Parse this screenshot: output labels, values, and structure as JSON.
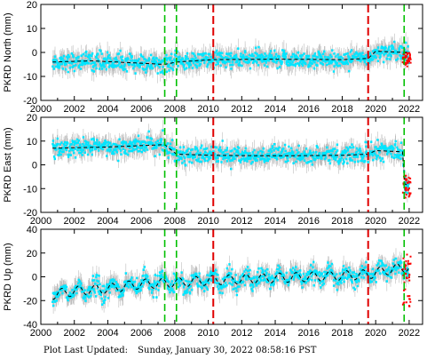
{
  "footer": {
    "label": "Plot Last Updated:",
    "timestamp": "Sunday, January 30, 2022 08:58:16 PST"
  },
  "colors": {
    "data_points": "#00e5ff",
    "error_bars": "#bdbdbd",
    "outliers": "#ff0000",
    "trend_line": "#000000",
    "green_markers": "#00c000",
    "red_markers": "#e00000"
  },
  "chart_data": [
    {
      "type": "scatter",
      "ylabel": "PKRD North (mm)",
      "xlim": [
        2000,
        2022.8
      ],
      "ylim": [
        -20,
        20
      ],
      "x_ticks": [
        2000,
        2002,
        2004,
        2006,
        2008,
        2010,
        2012,
        2014,
        2016,
        2018,
        2020,
        2022
      ],
      "y_ticks": [
        -20,
        -10,
        0,
        10,
        20
      ],
      "data_range": [
        2000.7,
        2022.0
      ],
      "green_vlines": [
        2007.4,
        2008.1,
        2021.7
      ],
      "red_vlines": [
        2010.3,
        2019.55
      ],
      "trend": [
        [
          2000.7,
          -4
        ],
        [
          2003,
          -3.5
        ],
        [
          2006,
          -4.5
        ],
        [
          2007.4,
          -5
        ],
        [
          2008.1,
          -4
        ],
        [
          2010.3,
          -3
        ],
        [
          2014,
          -2.8
        ],
        [
          2018,
          -3
        ],
        [
          2019.55,
          -2.5
        ],
        [
          2020,
          0.5
        ],
        [
          2021.7,
          0
        ]
      ],
      "outlier_x": [
        2021.6,
        2022.1
      ],
      "outlier_y": [
        -6,
        0
      ]
    },
    {
      "type": "scatter",
      "ylabel": "PKRD East (mm)",
      "xlim": [
        2000,
        2022.8
      ],
      "ylim": [
        -20,
        20
      ],
      "x_ticks": [
        2000,
        2002,
        2004,
        2006,
        2008,
        2010,
        2012,
        2014,
        2016,
        2018,
        2020,
        2022
      ],
      "y_ticks": [
        -20,
        -10,
        0,
        10,
        20
      ],
      "data_range": [
        2000.7,
        2022.0
      ],
      "green_vlines": [
        2007.4,
        2008.1,
        2021.7
      ],
      "red_vlines": [
        2010.3,
        2019.55
      ],
      "trend": [
        [
          2000.7,
          7
        ],
        [
          2004,
          7.5
        ],
        [
          2007.4,
          8.5
        ],
        [
          2008.1,
          4.5
        ],
        [
          2010.3,
          4
        ],
        [
          2014,
          3.8
        ],
        [
          2018,
          4
        ],
        [
          2019.55,
          4.5
        ],
        [
          2020,
          6
        ],
        [
          2021.6,
          5.5
        ],
        [
          2021.75,
          -8
        ],
        [
          2022.0,
          -9
        ]
      ],
      "outlier_x": [
        2021.6,
        2022.1
      ],
      "outlier_y": [
        -14,
        -4
      ]
    },
    {
      "type": "scatter",
      "ylabel": "PKRD Up (mm)",
      "xlim": [
        2000,
        2022.8
      ],
      "ylim": [
        -40,
        40
      ],
      "x_ticks": [
        2000,
        2002,
        2004,
        2006,
        2008,
        2010,
        2012,
        2014,
        2016,
        2018,
        2020,
        2022
      ],
      "y_ticks": [
        -40,
        -20,
        0,
        20,
        40
      ],
      "x_tick_labels": [
        "2000",
        "2002",
        "2004",
        "2006",
        "2008",
        "2010",
        "2012",
        "2014",
        "2016",
        "2018",
        "2020",
        "2022"
      ],
      "data_range": [
        2000.7,
        2022.0
      ],
      "green_vlines": [
        2007.4,
        2008.1,
        2021.7
      ],
      "red_vlines": [
        2010.3,
        2019.55
      ],
      "trend": [
        [
          2000.7,
          -15
        ],
        [
          2002,
          -12
        ],
        [
          2004,
          -10
        ],
        [
          2006,
          -6
        ],
        [
          2008,
          -5
        ],
        [
          2010,
          -3
        ],
        [
          2012,
          -2
        ],
        [
          2014,
          -1
        ],
        [
          2016,
          0
        ],
        [
          2018,
          1
        ],
        [
          2019.55,
          2
        ],
        [
          2020.5,
          5
        ],
        [
          2021.7,
          8
        ]
      ],
      "seasonal_amp": 4,
      "outlier_x": [
        2021.6,
        2022.1
      ],
      "outlier_y": [
        -25,
        20
      ]
    }
  ]
}
